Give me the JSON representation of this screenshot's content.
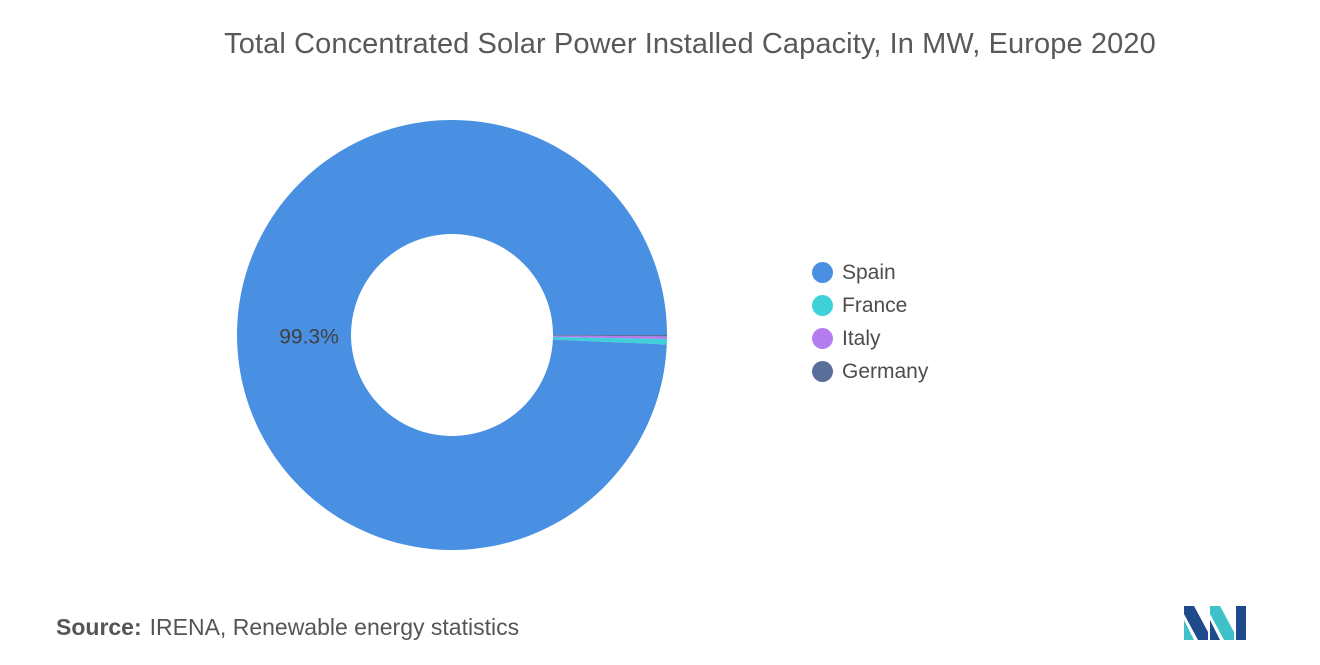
{
  "chart_data": {
    "type": "pie",
    "style": "donut",
    "title": "Total Concentrated Solar Power Installed Capacity, In MW, Europe 2020",
    "categories": [
      "Spain",
      "France",
      "Italy",
      "Germany"
    ],
    "values": [
      99.3,
      0.4,
      0.2,
      0.1
    ],
    "unit": "%",
    "data_labels": [
      {
        "category": "Spain",
        "text": "99.3%"
      }
    ],
    "colors": [
      "#4a90e2",
      "#3fd1d8",
      "#b57bf0",
      "#5b6e9a"
    ],
    "legend": "right",
    "start_angle_deg": 0
  },
  "footer": {
    "source_label": "Source:",
    "source_text": "IRENA, Renewable energy statistics"
  },
  "logo": {
    "icon": "mordor-intelligence-logo-icon",
    "colors": [
      "#1e4a8c",
      "#3fc1c9"
    ]
  }
}
